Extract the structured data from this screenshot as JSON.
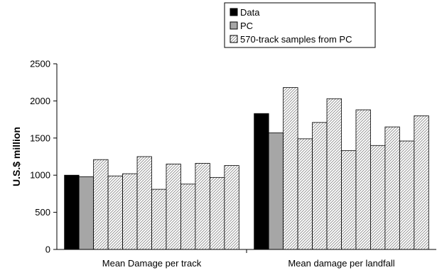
{
  "chart_data": {
    "type": "bar",
    "title": "",
    "xlabel": "",
    "ylabel": "U.S.$ million",
    "ylim": [
      0,
      2500
    ],
    "yticks": [
      0,
      500,
      1000,
      1500,
      2000,
      2500
    ],
    "grid": false,
    "legend_position": "top-right",
    "categories": [
      "Mean Damage per track",
      "Mean damage per landfall"
    ],
    "legend": [
      {
        "name": "Data",
        "style": "solid",
        "color": "#000000"
      },
      {
        "name": "PC",
        "style": "solid",
        "color": "#a6a6a6"
      },
      {
        "name": "570-track samples from PC",
        "style": "hatched",
        "color": "#d9d9d9"
      }
    ],
    "groups": [
      {
        "category": "Mean Damage per track",
        "bars": [
          {
            "series": "Data",
            "value": 1000
          },
          {
            "series": "PC",
            "value": 980
          },
          {
            "series": "570-track samples from PC",
            "value": 1210
          },
          {
            "series": "570-track samples from PC",
            "value": 990
          },
          {
            "series": "570-track samples from PC",
            "value": 1020
          },
          {
            "series": "570-track samples from PC",
            "value": 1250
          },
          {
            "series": "570-track samples from PC",
            "value": 810
          },
          {
            "series": "570-track samples from PC",
            "value": 1150
          },
          {
            "series": "570-track samples from PC",
            "value": 880
          },
          {
            "series": "570-track samples from PC",
            "value": 1160
          },
          {
            "series": "570-track samples from PC",
            "value": 970
          },
          {
            "series": "570-track samples from PC",
            "value": 1130
          }
        ]
      },
      {
        "category": "Mean damage per landfall",
        "bars": [
          {
            "series": "Data",
            "value": 1830
          },
          {
            "series": "PC",
            "value": 1570
          },
          {
            "series": "570-track samples from PC",
            "value": 2180
          },
          {
            "series": "570-track samples from PC",
            "value": 1490
          },
          {
            "series": "570-track samples from PC",
            "value": 1710
          },
          {
            "series": "570-track samples from PC",
            "value": 2030
          },
          {
            "series": "570-track samples from PC",
            "value": 1330
          },
          {
            "series": "570-track samples from PC",
            "value": 1880
          },
          {
            "series": "570-track samples from PC",
            "value": 1400
          },
          {
            "series": "570-track samples from PC",
            "value": 1650
          },
          {
            "series": "570-track samples from PC",
            "value": 1460
          },
          {
            "series": "570-track samples from PC",
            "value": 1800
          }
        ]
      }
    ]
  }
}
